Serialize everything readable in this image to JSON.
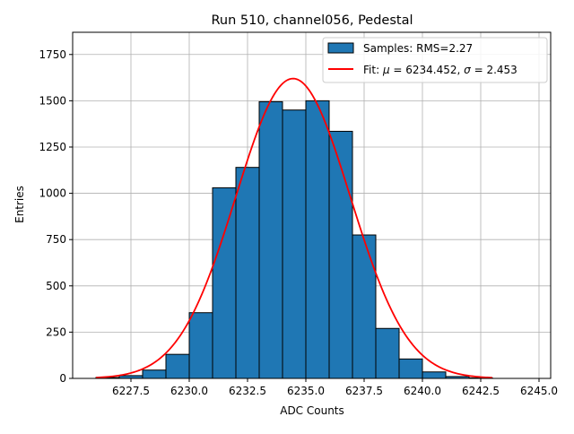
{
  "chart_data": {
    "type": "bar",
    "title": "Run 510, channel056, Pedestal",
    "xlabel": "ADC Counts",
    "ylabel": "Entries",
    "xlim": [
      6225.0,
      6245.5
    ],
    "ylim": [
      0,
      1870
    ],
    "xticks": [
      6227.5,
      6230.0,
      6232.5,
      6235.0,
      6237.5,
      6240.0,
      6242.5,
      6245.0
    ],
    "xtick_labels": [
      "6227.5",
      "6230.0",
      "6232.5",
      "6235.0",
      "6237.5",
      "6240.0",
      "6242.5",
      "6245.0"
    ],
    "yticks": [
      0,
      250,
      500,
      750,
      1000,
      1250,
      1500,
      1750
    ],
    "ytick_labels": [
      "0",
      "250",
      "500",
      "750",
      "1000",
      "1250",
      "1500",
      "1750"
    ],
    "grid": true,
    "legend_position": "top-right",
    "histogram": {
      "name": "Samples: RMS=2.27",
      "bin_edges": [
        6226,
        6227,
        6228,
        6229,
        6230,
        6231,
        6232,
        6233,
        6234,
        6235,
        6236,
        6237,
        6238,
        6239,
        6240,
        6241,
        6242,
        6243
      ],
      "values": [
        5,
        15,
        45,
        130,
        355,
        1030,
        1140,
        1495,
        1450,
        1500,
        1335,
        775,
        270,
        105,
        35,
        10,
        3
      ],
      "color": "#1f77b4"
    },
    "fit": {
      "name_prefix": "Fit: ",
      "mu_symbol": "μ",
      "mu_text": " = 6234.452, ",
      "sigma_symbol": "σ",
      "sigma_text": " = 2.453",
      "mu": 6234.452,
      "sigma": 2.453,
      "amplitude": 1620,
      "x_range": [
        6226,
        6243
      ],
      "color": "#ff0000"
    }
  }
}
